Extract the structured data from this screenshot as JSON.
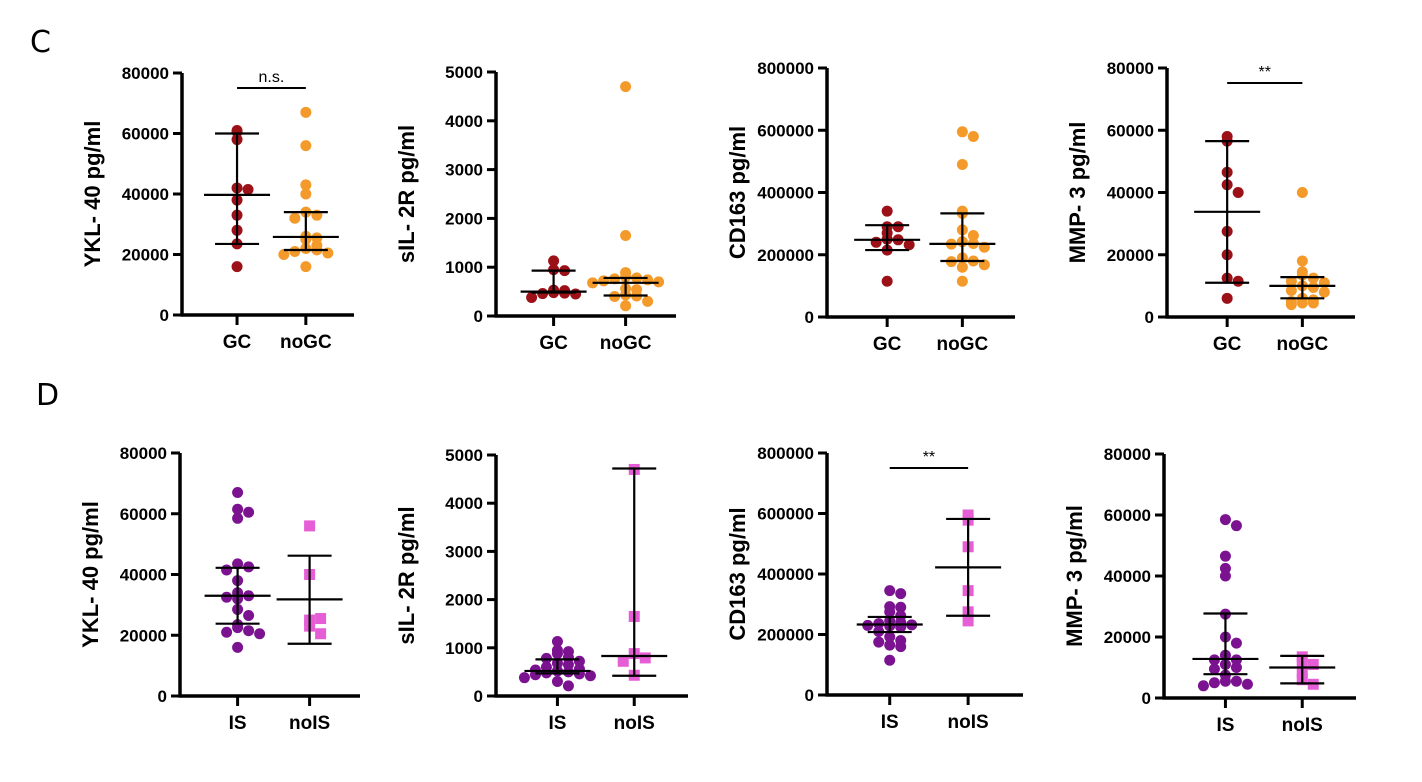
{
  "panels": [
    {
      "letter": "C"
    },
    {
      "letter": "D"
    }
  ],
  "colors": {
    "GC": "#9b1117",
    "noGC": "#f39a2b",
    "IS": "#7b1290",
    "noIS": "#e65ed6",
    "axis": "#000000"
  },
  "chart_data": [
    {
      "type": "scatter",
      "panel": "C",
      "ylabel": "YKL- 40 pg/ml",
      "ylim": [
        0,
        80000
      ],
      "yticks": [
        "0",
        "20000",
        "40000",
        "60000",
        "80000"
      ],
      "ytick_values": [
        0,
        20000,
        40000,
        60000,
        80000
      ],
      "categories": [
        "GC",
        "noGC"
      ],
      "series": [
        {
          "name": "GC",
          "marker": "circle",
          "values": [
            61000,
            60500,
            58000,
            42000,
            41500,
            38000,
            33000,
            28000,
            23500,
            16000
          ],
          "median": 39700,
          "iqr": [
            23500,
            60000
          ]
        },
        {
          "name": "noGC",
          "marker": "circle",
          "values": [
            67000,
            56000,
            43000,
            40000,
            34000,
            33000,
            32000,
            26000,
            25500,
            25000,
            23000,
            22000,
            21500,
            21000,
            20500,
            20000,
            16000
          ],
          "median": 25800,
          "iqr": [
            21500,
            34000
          ]
        }
      ],
      "significance": "n.s."
    },
    {
      "type": "scatter",
      "panel": "C",
      "ylabel": "sIL- 2R pg/ml",
      "ylim": [
        0,
        5000
      ],
      "yticks": [
        "0",
        "1000",
        "2000",
        "3000",
        "4000",
        "5000"
      ],
      "ytick_values": [
        0,
        1000,
        2000,
        3000,
        4000,
        5000
      ],
      "categories": [
        "GC",
        "noGC"
      ],
      "series": [
        {
          "name": "GC",
          "marker": "circle",
          "values": [
            1130,
            950,
            930,
            530,
            520,
            480,
            470,
            460,
            450,
            380
          ],
          "median": 500,
          "iqr": [
            480,
            930
          ]
        },
        {
          "name": "noGC",
          "marker": "circle",
          "values": [
            4700,
            1650,
            890,
            800,
            780,
            760,
            740,
            720,
            700,
            680,
            560,
            540,
            430,
            410,
            400,
            300,
            210
          ],
          "median": 680,
          "iqr": [
            420,
            780
          ]
        }
      ],
      "significance": ""
    },
    {
      "type": "scatter",
      "panel": "C",
      "ylabel": "CD163 pg/ml",
      "ylim": [
        0,
        800000
      ],
      "yticks": [
        "0",
        "200000",
        "400000",
        "600000",
        "800000"
      ],
      "ytick_values": [
        0,
        200000,
        400000,
        600000,
        800000
      ],
      "categories": [
        "GC",
        "noGC"
      ],
      "series": [
        {
          "name": "GC",
          "marker": "circle",
          "values": [
            340000,
            290000,
            290000,
            270000,
            250000,
            248000,
            240000,
            232000,
            215000,
            115000
          ],
          "median": 248000,
          "iqr": [
            215000,
            295000
          ]
        },
        {
          "name": "noGC",
          "marker": "circle",
          "values": [
            595000,
            580000,
            490000,
            340000,
            333000,
            280000,
            262000,
            242000,
            236000,
            234000,
            224000,
            190000,
            180000,
            178000,
            168000,
            160000,
            115000
          ],
          "median": 235000,
          "iqr": [
            180000,
            333000
          ]
        }
      ],
      "significance": ""
    },
    {
      "type": "scatter",
      "panel": "C",
      "ylabel": "MMP- 3 pg/ml",
      "ylim": [
        0,
        80000
      ],
      "yticks": [
        "0",
        "20000",
        "40000",
        "60000",
        "80000"
      ],
      "ytick_values": [
        0,
        20000,
        40000,
        60000,
        80000
      ],
      "categories": [
        "GC",
        "noGC"
      ],
      "series": [
        {
          "name": "GC",
          "marker": "circle",
          "values": [
            58000,
            56500,
            46500,
            42500,
            40000,
            27500,
            20000,
            12500,
            11500,
            6000
          ],
          "median": 33800,
          "iqr": [
            11000,
            56500
          ]
        },
        {
          "name": "noGC",
          "marker": "circle",
          "values": [
            40000,
            18000,
            14500,
            13500,
            12500,
            11500,
            11000,
            10000,
            9500,
            8500,
            8000,
            6000,
            5500,
            5000,
            4500,
            4500,
            4000
          ],
          "median": 10000,
          "iqr": [
            6000,
            12800
          ]
        }
      ],
      "significance": "**"
    },
    {
      "type": "scatter",
      "panel": "D",
      "ylabel": "YKL- 40 pg/ml",
      "ylim": [
        0,
        80000
      ],
      "yticks": [
        "0",
        "20000",
        "40000",
        "60000",
        "80000"
      ],
      "ytick_values": [
        0,
        20000,
        40000,
        60000,
        80000
      ],
      "categories": [
        "IS",
        "noIS"
      ],
      "series": [
        {
          "name": "IS",
          "marker": "circle",
          "values": [
            67000,
            61500,
            60500,
            58500,
            43500,
            42500,
            41500,
            38000,
            34000,
            33000,
            32500,
            32000,
            28500,
            26500,
            23500,
            22500,
            21500,
            21000,
            20500,
            16000
          ],
          "median": 33000,
          "iqr": [
            23800,
            42200
          ]
        },
        {
          "name": "noIS",
          "marker": "square",
          "values": [
            56000,
            40000,
            25000,
            25500,
            23000,
            20500
          ],
          "median": 31800,
          "iqr": [
            17200,
            46200
          ]
        }
      ],
      "significance": ""
    },
    {
      "type": "scatter",
      "panel": "D",
      "ylabel": "sIL- 2R pg/ml",
      "ylim": [
        0,
        5000
      ],
      "yticks": [
        "0",
        "1000",
        "2000",
        "3000",
        "4000",
        "5000"
      ],
      "ytick_values": [
        0,
        1000,
        2000,
        3000,
        4000,
        5000
      ],
      "categories": [
        "IS",
        "noIS"
      ],
      "series": [
        {
          "name": "IS",
          "marker": "circle",
          "values": [
            1130,
            950,
            920,
            880,
            800,
            780,
            720,
            680,
            650,
            600,
            560,
            540,
            520,
            500,
            480,
            460,
            440,
            420,
            380,
            300,
            210
          ],
          "median": 520,
          "iqr": [
            470,
            760
          ]
        },
        {
          "name": "noIS",
          "marker": "square",
          "values": [
            4700,
            1650,
            880,
            790,
            720,
            430
          ],
          "median": 830,
          "iqr": [
            420,
            4720
          ]
        }
      ],
      "significance": ""
    },
    {
      "type": "scatter",
      "panel": "D",
      "ylabel": "CD163 pg/ml",
      "ylim": [
        0,
        800000
      ],
      "yticks": [
        "0",
        "200000",
        "400000",
        "600000",
        "800000"
      ],
      "ytick_values": [
        0,
        200000,
        400000,
        600000,
        800000
      ],
      "categories": [
        "IS",
        "noIS"
      ],
      "series": [
        {
          "name": "IS",
          "marker": "circle",
          "values": [
            345000,
            335000,
            292000,
            290000,
            275000,
            262000,
            245000,
            240000,
            236000,
            232000,
            230000,
            228000,
            225000,
            210000,
            192000,
            180000,
            175000,
            165000,
            160000,
            115000
          ],
          "median": 233000,
          "iqr": [
            208000,
            258000
          ]
        },
        {
          "name": "noIS",
          "marker": "square",
          "values": [
            595000,
            578000,
            490000,
            345000,
            275000,
            245000
          ],
          "median": 422000,
          "iqr": [
            262000,
            582000
          ]
        }
      ],
      "significance": "**"
    },
    {
      "type": "scatter",
      "panel": "D",
      "ylabel": "MMP- 3 pg/ml",
      "ylim": [
        0,
        80000
      ],
      "yticks": [
        "0",
        "20000",
        "40000",
        "60000",
        "80000"
      ],
      "ytick_values": [
        0,
        20000,
        40000,
        60000,
        80000
      ],
      "categories": [
        "IS",
        "noIS"
      ],
      "series": [
        {
          "name": "IS",
          "marker": "circle",
          "values": [
            58500,
            56500,
            46500,
            42500,
            40000,
            27500,
            20000,
            18000,
            14000,
            12500,
            12500,
            11000,
            10000,
            9500,
            7500,
            5500,
            5500,
            5000,
            4500,
            4000
          ],
          "median": 12800,
          "iqr": [
            7800,
            27700
          ]
        },
        {
          "name": "noIS",
          "marker": "square",
          "values": [
            13500,
            11500,
            11000,
            8500,
            6000,
            4500
          ],
          "median": 10000,
          "iqr": [
            4800,
            13800
          ]
        }
      ],
      "significance": ""
    }
  ]
}
